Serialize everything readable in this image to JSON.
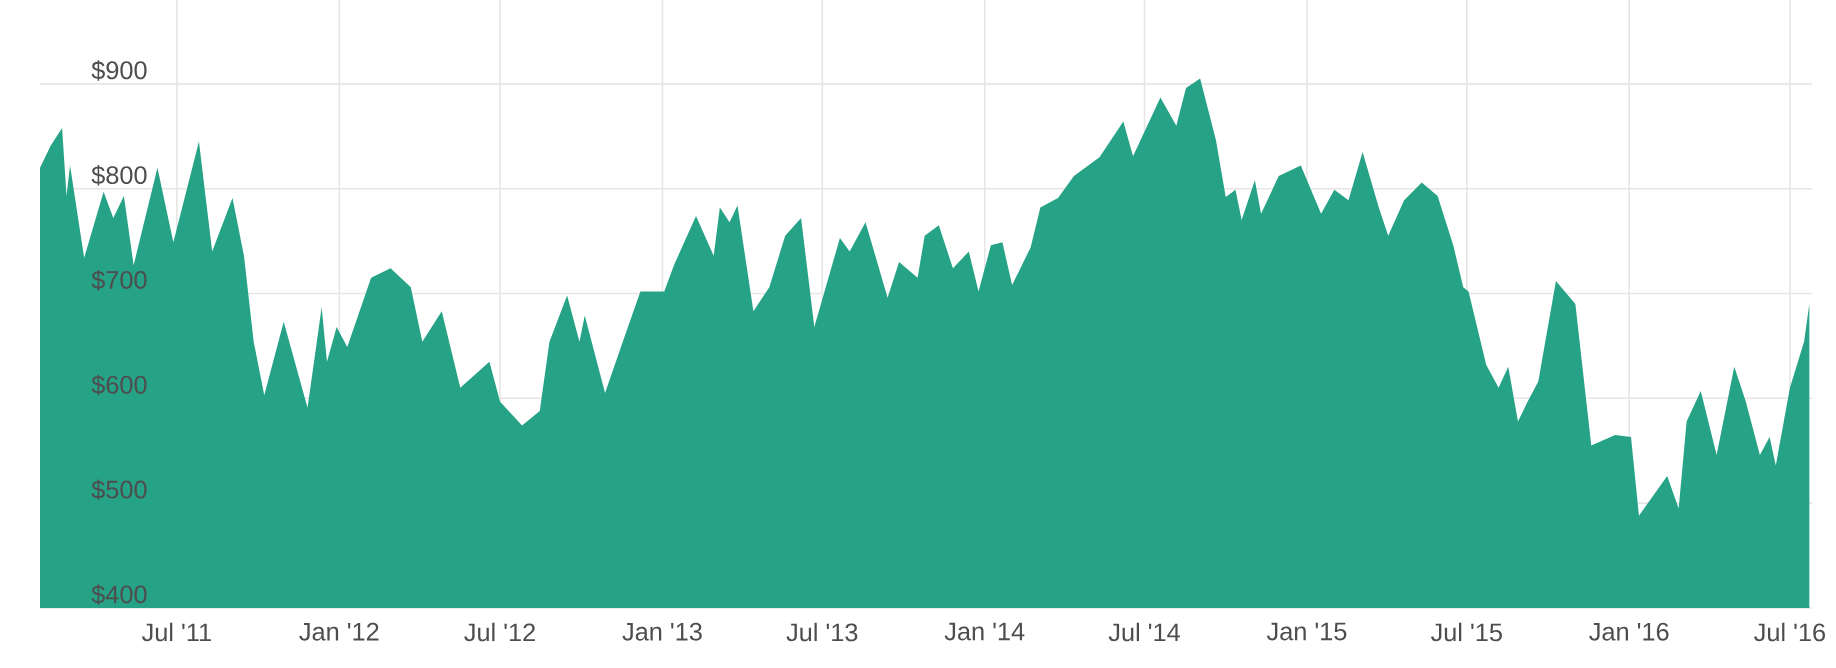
{
  "chart_data": {
    "type": "area",
    "color": "#26a387",
    "grid": true,
    "xlim": [
      "2011-01-27",
      "2016-07-26"
    ],
    "ylim": [
      400,
      980
    ],
    "xticks": [
      {
        "value": "2011-07-01",
        "label": "Jul '11"
      },
      {
        "value": "2012-01-01",
        "label": "Jan '12"
      },
      {
        "value": "2012-07-01",
        "label": "Jul '12"
      },
      {
        "value": "2013-01-01",
        "label": "Jan '13"
      },
      {
        "value": "2013-07-01",
        "label": "Jul '13"
      },
      {
        "value": "2014-01-01",
        "label": "Jan '14"
      },
      {
        "value": "2014-07-01",
        "label": "Jul '14"
      },
      {
        "value": "2015-01-01",
        "label": "Jan '15"
      },
      {
        "value": "2015-07-01",
        "label": "Jul '15"
      },
      {
        "value": "2016-01-01",
        "label": "Jan '16"
      },
      {
        "value": "2016-07-01",
        "label": "Jul '16"
      }
    ],
    "yticks": [
      {
        "value": 400,
        "label": "$400"
      },
      {
        "value": 500,
        "label": "$500"
      },
      {
        "value": 600,
        "label": "$600"
      },
      {
        "value": 700,
        "label": "$700"
      },
      {
        "value": 800,
        "label": "$800"
      },
      {
        "value": 900,
        "label": "$900"
      }
    ],
    "x": [
      "2011-01-27",
      "2011-02-08",
      "2011-02-21",
      "2011-02-26",
      "2011-03-02",
      "2011-03-18",
      "2011-04-09",
      "2011-04-20",
      "2011-05-02",
      "2011-05-13",
      "2011-06-09",
      "2011-06-27",
      "2011-07-26",
      "2011-08-10",
      "2011-09-02",
      "2011-09-15",
      "2011-09-26",
      "2011-10-08",
      "2011-10-30",
      "2011-11-26",
      "2011-12-12",
      "2011-12-18",
      "2011-12-29",
      "2012-01-10",
      "2012-02-06",
      "2012-02-28",
      "2012-03-22",
      "2012-04-04",
      "2012-04-26",
      "2012-05-17",
      "2012-06-19",
      "2012-07-01",
      "2012-07-26",
      "2012-08-15",
      "2012-08-26",
      "2012-09-15",
      "2012-09-29",
      "2012-10-05",
      "2012-10-28",
      "2012-11-15",
      "2012-12-07",
      "2013-01-03",
      "2013-01-14",
      "2013-02-08",
      "2013-02-28",
      "2013-03-07",
      "2013-03-18",
      "2013-03-27",
      "2013-04-14",
      "2013-05-02",
      "2013-05-20",
      "2013-06-07",
      "2013-06-22",
      "2013-07-21",
      "2013-08-01",
      "2013-08-19",
      "2013-09-13",
      "2013-09-26",
      "2013-10-17",
      "2013-10-25",
      "2013-11-10",
      "2013-11-26",
      "2013-12-14",
      "2013-12-25",
      "2014-01-08",
      "2014-01-21",
      "2014-02-01",
      "2014-02-22",
      "2014-03-05",
      "2014-03-25",
      "2014-04-12",
      "2014-05-11",
      "2014-06-07",
      "2014-06-18",
      "2014-07-19",
      "2014-08-06",
      "2014-08-17",
      "2014-09-02",
      "2014-09-20",
      "2014-10-01",
      "2014-10-12",
      "2014-10-19",
      "2014-11-03",
      "2014-11-10",
      "2014-11-30",
      "2014-12-25",
      "2015-01-17",
      "2015-02-01",
      "2015-02-17",
      "2015-03-05",
      "2015-03-23",
      "2015-04-03",
      "2015-04-21",
      "2015-05-11",
      "2015-05-29",
      "2015-06-16",
      "2015-06-27",
      "2015-07-03",
      "2015-07-23",
      "2015-08-06",
      "2015-08-17",
      "2015-08-28",
      "2015-09-08",
      "2015-09-20",
      "2015-10-10",
      "2015-11-01",
      "2015-11-19",
      "2015-12-16",
      "2016-01-03",
      "2016-01-12",
      "2016-02-13",
      "2016-02-26",
      "2016-03-06",
      "2016-03-22",
      "2016-04-09",
      "2016-04-29",
      "2016-05-12",
      "2016-05-28",
      "2016-06-08",
      "2016-06-15",
      "2016-07-01",
      "2016-07-17",
      "2016-07-23"
    ],
    "values": [
      820,
      841,
      858,
      793,
      822,
      734,
      797,
      772,
      793,
      727,
      820,
      749,
      845,
      740,
      791,
      736,
      654,
      603,
      673,
      591,
      687,
      635,
      668,
      649,
      715,
      724,
      706,
      654,
      683,
      610,
      635,
      597,
      574,
      588,
      654,
      698,
      654,
      679,
      605,
      649,
      702,
      702,
      727,
      774,
      736,
      782,
      768,
      784,
      683,
      706,
      755,
      772,
      668,
      753,
      740,
      768,
      696,
      730,
      715,
      755,
      765,
      724,
      740,
      702,
      746,
      749,
      708,
      744,
      782,
      791,
      812,
      830,
      864,
      831,
      887,
      860,
      896,
      905,
      846,
      792,
      799,
      770,
      808,
      776,
      812,
      822,
      776,
      799,
      789,
      835,
      783,
      755,
      789,
      806,
      793,
      745,
      706,
      702,
      632,
      610,
      630,
      578,
      597,
      616,
      712,
      690,
      555,
      565,
      563,
      488,
      526,
      495,
      578,
      607,
      546,
      630,
      597,
      546,
      563,
      536,
      610,
      654,
      690
    ]
  }
}
